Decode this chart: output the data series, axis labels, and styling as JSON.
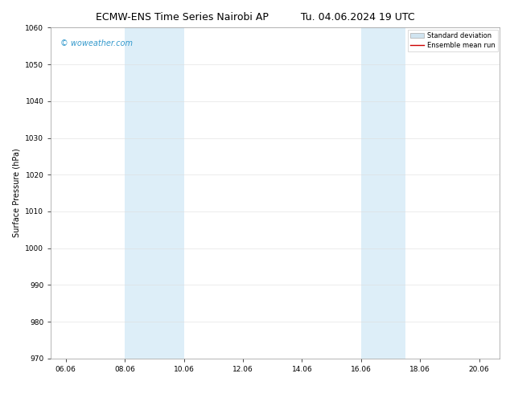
{
  "title_left": "ECMW-ENS Time Series Nairobi AP",
  "title_right": "Tu. 04.06.2024 19 UTC",
  "ylabel": "Surface Pressure (hPa)",
  "ylim": [
    970,
    1060
  ],
  "yticks": [
    970,
    980,
    990,
    1000,
    1010,
    1020,
    1030,
    1040,
    1050,
    1060
  ],
  "xlim_start": 5.5,
  "xlim_end": 20.7,
  "xtick_labels": [
    "06.06",
    "08.06",
    "10.06",
    "12.06",
    "14.06",
    "16.06",
    "18.06",
    "20.06"
  ],
  "xtick_positions": [
    6.0,
    8.0,
    10.0,
    12.0,
    14.0,
    16.0,
    18.0,
    20.0
  ],
  "shaded_regions": [
    {
      "x_start": 8.0,
      "x_end": 10.0,
      "color": "#ddeef8"
    },
    {
      "x_start": 16.0,
      "x_end": 17.5,
      "color": "#ddeef8"
    }
  ],
  "background_color": "#ffffff",
  "grid_color": "#dddddd",
  "watermark_text": "© woweather.com",
  "watermark_color": "#3399cc",
  "legend_entries": [
    {
      "label": "Standard deviation",
      "type": "patch",
      "color": "#d0e4f0"
    },
    {
      "label": "Ensemble mean run",
      "type": "line",
      "color": "#cc0000"
    }
  ],
  "title_fontsize": 9,
  "axis_label_fontsize": 7,
  "tick_fontsize": 6.5
}
